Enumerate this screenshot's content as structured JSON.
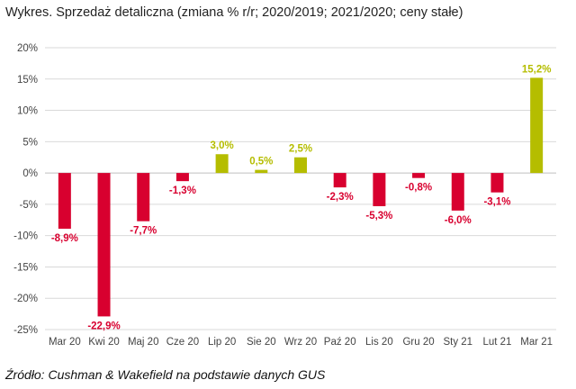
{
  "chart_data": {
    "type": "bar",
    "title": "Wykres. Sprzedaż detaliczna (zmiana % r/r; 2020/2019; 2021/2020; ceny stałe)",
    "categories": [
      "Mar 20",
      "Kwi 20",
      "Maj 20",
      "Cze 20",
      "Lip 20",
      "Sie 20",
      "Wrz 20",
      "Paź 20",
      "Lis 20",
      "Gru 20",
      "Sty 21",
      "Lut 21",
      "Mar 21"
    ],
    "values": [
      -8.9,
      -22.9,
      -7.7,
      -1.3,
      3.0,
      0.5,
      2.5,
      -2.3,
      -5.3,
      -0.8,
      -6.0,
      -3.1,
      15.2
    ],
    "data_labels": [
      "-8,9%",
      "-22,9%",
      "-7,7%",
      "-1,3%",
      "3,0%",
      "0,5%",
      "2,5%",
      "-2,3%",
      "-5,3%",
      "-0,8%",
      "-6,0%",
      "-3,1%",
      "15,2%"
    ],
    "ylim": [
      -25,
      20
    ],
    "yticks": [
      20,
      15,
      10,
      5,
      0,
      -5,
      -10,
      -15,
      -20,
      -25
    ],
    "ytick_labels": [
      "20%",
      "15%",
      "10%",
      "5%",
      "0%",
      "-5%",
      "-10%",
      "-15%",
      "-20%",
      "-25%"
    ],
    "xlabel": "",
    "ylabel": "",
    "grid": true,
    "legend": "none",
    "colors": {
      "positive": "#b5bd00",
      "negative": "#d8002f",
      "grid": "#d9d9d9",
      "axis": "#bfbfbf"
    }
  },
  "source": "Źródło: Cushman & Wakefield na podstawie danych GUS"
}
